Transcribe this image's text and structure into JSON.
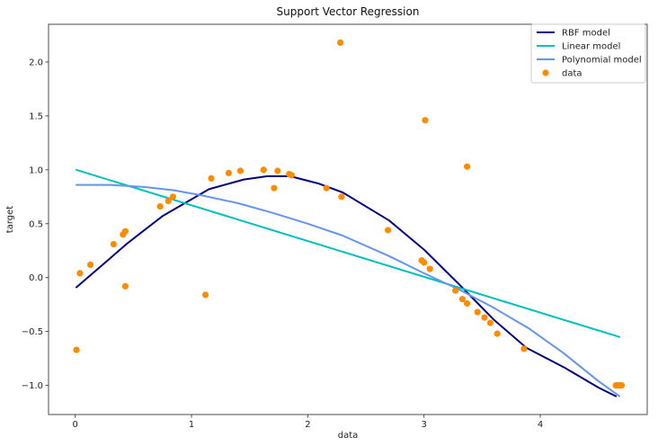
{
  "chart_data": {
    "type": "line",
    "title": "Support Vector Regression",
    "xlabel": "data",
    "ylabel": "target",
    "xlim": [
      -0.23,
      4.92
    ],
    "ylim": [
      -1.27,
      2.35
    ],
    "xticks": [
      0,
      1,
      2,
      3,
      4
    ],
    "yticks": [
      -1.0,
      -0.5,
      0.0,
      0.5,
      1.0,
      1.5,
      2.0
    ],
    "xtick_labels": [
      "0",
      "1",
      "2",
      "3",
      "4"
    ],
    "ytick_labels": [
      "−1.0",
      "−0.5",
      "0.0",
      "0.5",
      "1.0",
      "1.5",
      "2.0"
    ],
    "grid": false,
    "legend_position": "top-right",
    "series": [
      {
        "name": "RBF model",
        "kind": "line",
        "color": "#000080",
        "x": [
          0.01,
          0.3,
          0.45,
          0.75,
          1.15,
          1.45,
          1.65,
          1.85,
          2.1,
          2.3,
          2.7,
          3.0,
          3.3,
          3.6,
          3.88,
          4.2,
          4.5,
          4.65
        ],
        "y": [
          -0.09,
          0.18,
          0.32,
          0.57,
          0.82,
          0.91,
          0.94,
          0.94,
          0.87,
          0.79,
          0.53,
          0.26,
          -0.06,
          -0.39,
          -0.65,
          -0.83,
          -1.02,
          -1.1
        ]
      },
      {
        "name": "Linear model",
        "kind": "line",
        "color": "#00bfbf",
        "x": [
          0.01,
          4.68
        ],
        "y": [
          1.0,
          -0.55
        ]
      },
      {
        "name": "Polynomial model",
        "kind": "line",
        "color": "#6495ed",
        "x": [
          0.01,
          0.3,
          0.6,
          0.85,
          1.1,
          1.4,
          1.7,
          2.0,
          2.3,
          2.7,
          3.0,
          3.3,
          3.6,
          3.9,
          4.2,
          4.5,
          4.68
        ],
        "y": [
          0.86,
          0.86,
          0.84,
          0.81,
          0.76,
          0.69,
          0.6,
          0.5,
          0.39,
          0.2,
          0.04,
          -0.11,
          -0.28,
          -0.47,
          -0.7,
          -0.96,
          -1.1
        ]
      },
      {
        "name": "data",
        "kind": "scatter",
        "color": "#ff8c00",
        "x": [
          0.01,
          0.04,
          0.13,
          0.33,
          0.41,
          0.43,
          0.43,
          0.73,
          0.8,
          0.84,
          1.12,
          1.17,
          1.32,
          1.42,
          1.62,
          1.71,
          1.74,
          1.84,
          1.86,
          2.16,
          2.28,
          2.29,
          2.69,
          2.98,
          3.0,
          3.01,
          3.05,
          3.27,
          3.33,
          3.37,
          3.37,
          3.46,
          3.52,
          3.57,
          3.63,
          3.86,
          4.65,
          4.67,
          4.68,
          4.7
        ],
        "y": [
          -0.67,
          0.04,
          0.12,
          0.31,
          0.4,
          -0.08,
          0.43,
          0.66,
          0.71,
          0.75,
          -0.16,
          0.92,
          0.97,
          0.99,
          1.0,
          0.83,
          0.99,
          0.96,
          0.95,
          0.83,
          2.18,
          0.75,
          0.44,
          0.16,
          0.14,
          1.46,
          0.08,
          -0.12,
          -0.2,
          -0.24,
          1.03,
          -0.32,
          -0.37,
          -0.42,
          -0.52,
          -0.66,
          -1.0,
          -1.0,
          -1.0,
          -1.0
        ]
      }
    ]
  }
}
